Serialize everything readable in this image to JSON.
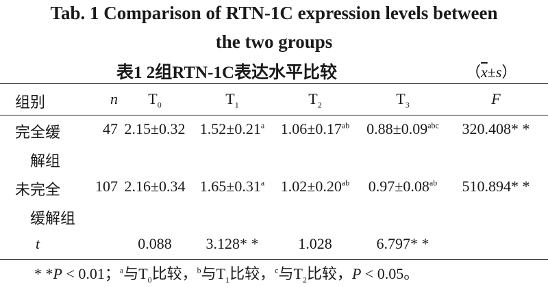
{
  "title_en": [
    "Tab. 1    Comparison of RTN-1C expression levels between",
    "the two groups"
  ],
  "title_zh": "表1    2组RTN-1C表达水平比较",
  "unit": [
    "（",
    {
      "text": "x",
      "style": "bar-italic"
    },
    "±",
    {
      "text": "s",
      "style": "italic"
    },
    "）"
  ],
  "table": {
    "header": [
      {
        "text": "组别"
      },
      {
        "text": "n",
        "style": "italic"
      },
      {
        "text": "T",
        "sub": "0"
      },
      {
        "text": "T",
        "sub": "1"
      },
      {
        "text": "T",
        "sub": "2"
      },
      {
        "text": "T",
        "sub": "3"
      },
      {
        "text": "F",
        "style": "italic"
      }
    ],
    "rows": [
      {
        "name": [
          "完全缓",
          "解组"
        ],
        "cells": [
          {
            "v": "47"
          },
          {
            "v": "2.15±0.32"
          },
          {
            "v": "1.52±0.21",
            "sup": "a"
          },
          {
            "v": "1.06±0.17",
            "sup": "ab"
          },
          {
            "v": "0.88±0.09",
            "sup": "abc"
          },
          {
            "v": "320.408",
            "star": "* *"
          }
        ]
      },
      {
        "name": [
          "未完全",
          "缓解组"
        ],
        "cells": [
          {
            "v": "107"
          },
          {
            "v": "2.16±0.34"
          },
          {
            "v": "1.65±0.31",
            "sup": "a"
          },
          {
            "v": "1.02±0.20",
            "sup": "ab"
          },
          {
            "v": "0.97±0.08",
            "sup": "ab"
          },
          {
            "v": "510.894",
            "star": "* *"
          }
        ]
      }
    ],
    "t_row": {
      "name": "t",
      "cells": [
        null,
        {
          "v": "0.088"
        },
        {
          "v": "3.128",
          "star": "* *"
        },
        {
          "v": "1.028"
        },
        {
          "v": "6.797",
          "star": "* *"
        },
        null
      ]
    }
  },
  "footnote": [
    "* *",
    {
      "text": "P",
      "style": "italic"
    },
    " < 0.01；",
    {
      "text": "a",
      "style": "sup"
    },
    "与T",
    {
      "text": "0",
      "style": "sub"
    },
    "比较，",
    {
      "text": "b",
      "style": "sup"
    },
    "与T",
    {
      "text": "1",
      "style": "sub"
    },
    "比较，",
    {
      "text": "c",
      "style": "sup"
    },
    "与T",
    {
      "text": "2",
      "style": "sub"
    },
    "比较，",
    {
      "text": "P",
      "style": "italic"
    },
    " < 0.05。"
  ]
}
